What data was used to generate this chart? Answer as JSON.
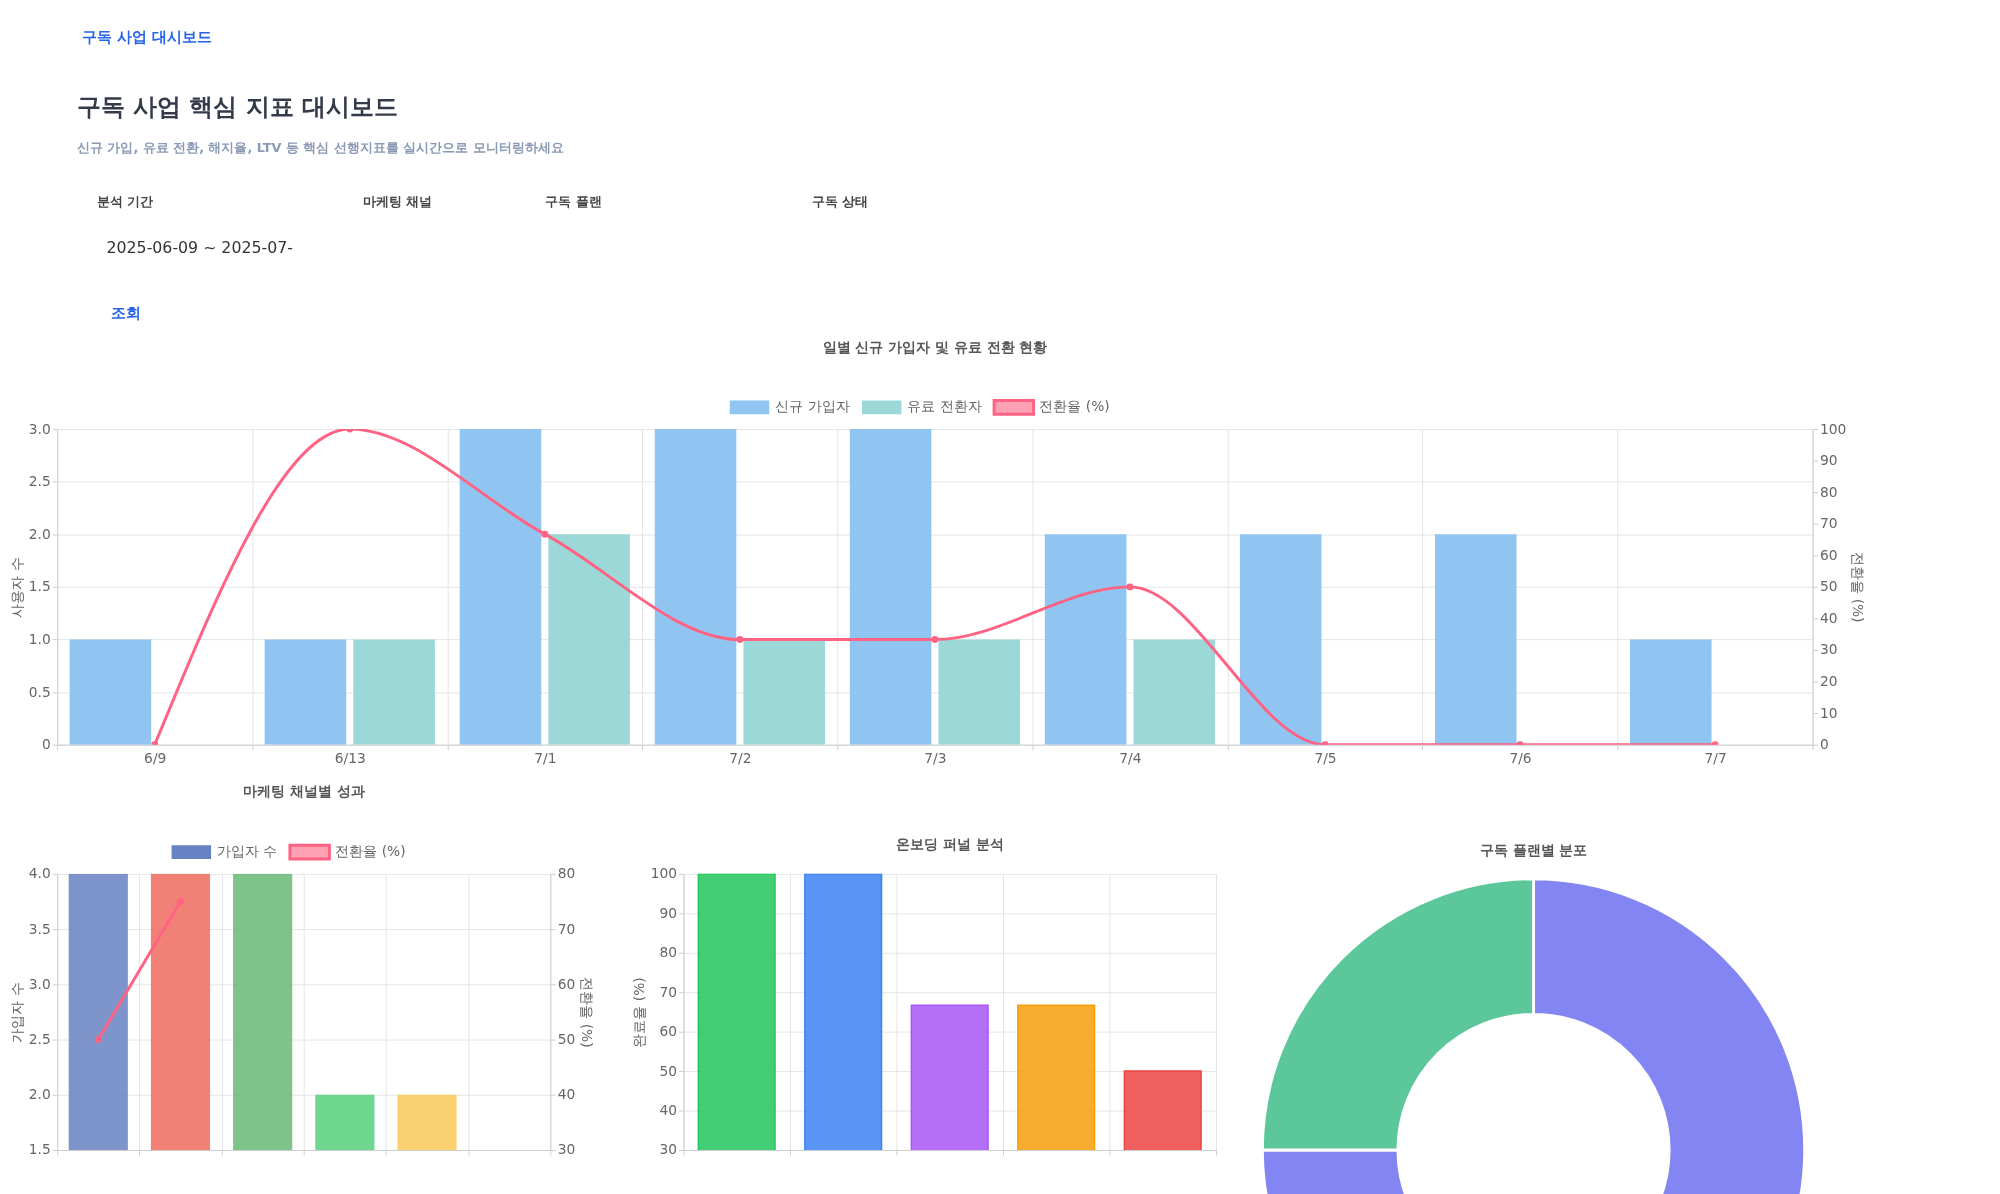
{
  "chart_data": [
    {
      "type": "other",
      "title": "구독 사업 핵심 지표 대시보드",
      "subtitle": "신규 가입, 유료 전환, 해지율, LTV 등 핵심 선행지표를 실시간으로 모니터링하세요",
      "annotations": [
        "구독 사업 대시보드",
        "분석 기간",
        "마케팅 채널",
        "구독 플랜",
        "구독 상태",
        "2025-06-09 ~ 2025-07-",
        "조회"
      ]
    },
    {
      "type": "bar",
      "title": "일별 신규 가입자 및 유료 전환 현황",
      "categories": [
        "6/9",
        "6/13",
        "7/1",
        "7/2",
        "7/3",
        "7/4",
        "7/5",
        "7/6",
        "7/7"
      ],
      "series": [
        {
          "name": "신규 가입자",
          "color": "#90c5f2",
          "values": [
            1,
            1,
            3,
            3,
            3,
            2,
            2,
            2,
            1
          ]
        },
        {
          "name": "유료 전환자",
          "color": "#9cd8d8",
          "values": [
            0,
            1,
            2,
            1,
            1,
            1,
            0,
            0,
            0
          ]
        },
        {
          "name": "전환율 (%)",
          "type": "line",
          "axis": "y2",
          "color": "#ff6384",
          "values": [
            0,
            100,
            66.7,
            33.3,
            33.3,
            50,
            0,
            0,
            0
          ]
        }
      ],
      "ylabel": "사용자 수",
      "y2label": "전환율 (%)",
      "ylim": [
        0,
        3
      ],
      "yticks": [
        0,
        0.5,
        {
          "value": 1,
          "label": "1.0"
        },
        1.5,
        {
          "value": 2,
          "label": "2.0"
        },
        2.5,
        {
          "value": 3,
          "label": "3.0"
        }
      ],
      "y2lim": [
        0,
        100
      ],
      "y2ticks": [
        0,
        10,
        20,
        30,
        40,
        50,
        60,
        70,
        80,
        90,
        100
      ],
      "grid": true,
      "legend": "top",
      "marker": "circle"
    },
    {
      "type": "bar",
      "title": "마케팅 채널별 성과",
      "categories": [
        null,
        null,
        null,
        null,
        null,
        null
      ],
      "series": [
        {
          "name": "가입자 수",
          "color": "#6682c2",
          "colors": [
            "#6682c2",
            "#ef6a5e",
            "#67b874",
            "#57d07c",
            "#fac858",
            "#cccccc"
          ],
          "values": [
            4,
            4,
            4,
            2,
            2,
            null
          ]
        },
        {
          "name": "전환율 (%)",
          "type": "line",
          "axis": "y2",
          "color": "#ff6384",
          "values": [
            50,
            75,
            null,
            null,
            null,
            null
          ]
        }
      ],
      "ylabel": "가입자 수",
      "y2label": "전환율 (%)",
      "ylim": [
        1.5,
        4
      ],
      "yticks": [
        1.5,
        {
          "value": 2,
          "label": "2.0"
        },
        2.5,
        {
          "value": 3,
          "label": "3.0"
        },
        3.5,
        {
          "value": 4,
          "label": "4.0"
        }
      ],
      "y2lim": [
        30,
        80
      ],
      "y2ticks": [
        30,
        40,
        50,
        60,
        70,
        80
      ],
      "grid": true,
      "legend": "top",
      "marker": "circle"
    },
    {
      "type": "bar",
      "title": "온보딩 퍼널 분석",
      "categories": [
        null,
        null,
        null,
        null,
        null
      ],
      "values": [
        100,
        100,
        66.7,
        66.7,
        50
      ],
      "colors": [
        "#22c55e",
        "#3b82f6",
        "#a855f7",
        "#f59e0b",
        "#ef4444"
      ],
      "ylabel": "완료율 (%)",
      "ylim": [
        30,
        100
      ],
      "yticks": [
        30,
        40,
        50,
        60,
        70,
        80,
        90,
        100
      ],
      "grid": true
    },
    {
      "type": "donut",
      "title": "구독 플랜별 분포",
      "categories": [
        null,
        null
      ],
      "values": [
        75,
        25
      ],
      "colors": [
        "#8385f3",
        "#5bc79b"
      ]
    }
  ]
}
